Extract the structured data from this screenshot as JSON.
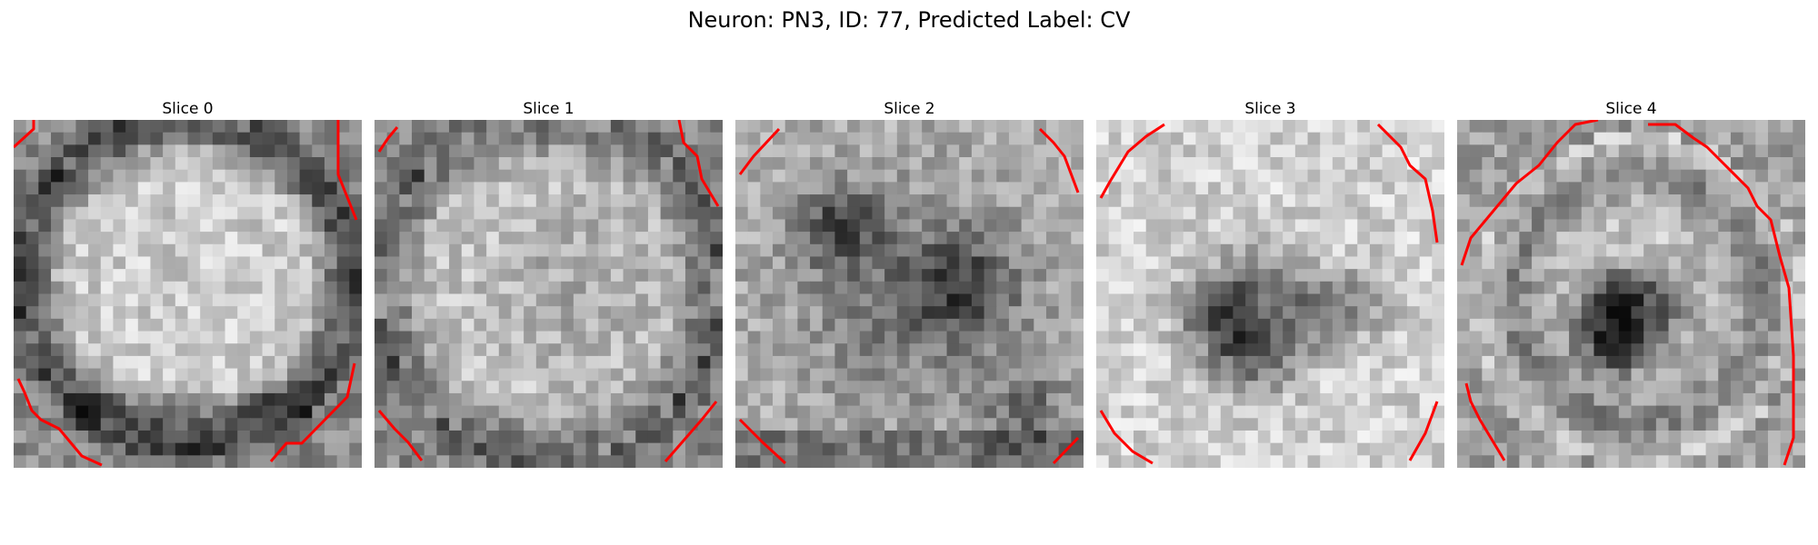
{
  "figure": {
    "title": "Neuron: PN3, ID: 77, Predicted Label: CV"
  },
  "panels": [
    {
      "title": "Slice 0"
    },
    {
      "title": "Slice 1"
    },
    {
      "title": "Slice 2"
    },
    {
      "title": "Slice 3"
    },
    {
      "title": "Slice 4"
    }
  ],
  "colors": {
    "contour": "#ff0000",
    "background": "#ffffff"
  }
}
